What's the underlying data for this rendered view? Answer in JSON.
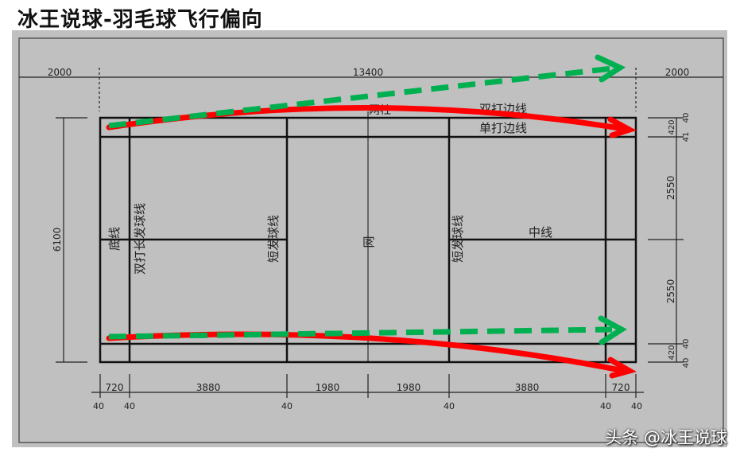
{
  "title": "冰王说球-羽毛球飞行偏向",
  "watermark": "头条 @冰王说球",
  "dims": {
    "left_margin": "2000",
    "length": "13400",
    "right_margin": "2000",
    "width": "6100",
    "half_width_top": "2550",
    "half_width_bottom": "2550",
    "side_top": "420",
    "side_bottom": "420",
    "t40a": "40",
    "t41": "41",
    "b40a": "40",
    "b40b": "40",
    "bottom": [
      "720",
      "3880",
      "1980",
      "1980",
      "3880",
      "720"
    ],
    "bottom_40": [
      "40",
      "40",
      "40",
      "40",
      "40",
      "40"
    ]
  },
  "labels": {
    "net_post": "网柱",
    "doubles_side": "双打边线",
    "singles_side": "单打边线",
    "baseline": "底线",
    "doubles_long_service": "双打长发球线",
    "short_service_left": "短发球线",
    "short_service_right": "短发球线",
    "net": "网",
    "center_line": "中线"
  },
  "colors": {
    "green_path": "#00b050",
    "red_path": "#ff0000",
    "background": "#c0c0c0"
  }
}
